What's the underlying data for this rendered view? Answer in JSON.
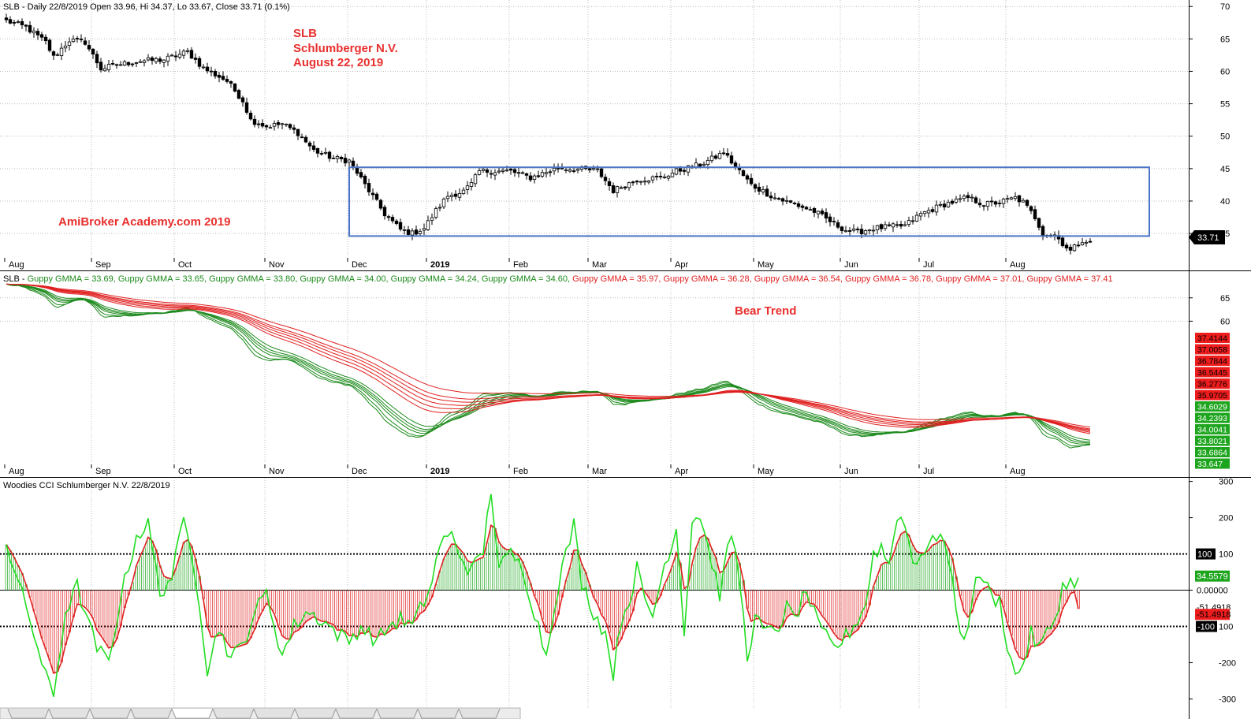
{
  "price": {
    "header": "SLB - Daily 22/8/2019 Open 33.96, Hi 34.37, Lo 33.67, Close 33.71 (0.1%)",
    "annotation_lines": [
      "SLB",
      "Schlumberger N.V.",
      "August 22, 2019"
    ],
    "watermark": "AmiBroker Academy.com 2019",
    "last_label": "33.71",
    "y_ticks": [
      70,
      65,
      60,
      55,
      50,
      45,
      40,
      35
    ],
    "ylim": [
      31,
      71
    ],
    "box": {
      "x0": 87,
      "x1": 290,
      "y0": 34.6,
      "y1": 45.2
    },
    "colors": {
      "candle": "#000000",
      "box": "#4a74c6",
      "annotation": "#e8302e"
    }
  },
  "gmma": {
    "header_prefix": "SLB - ",
    "entries": [
      {
        "text": "Guppy GMMA = 33.69",
        "color": "#1c8a1c"
      },
      {
        "text": "Guppy GMMA = 33.65",
        "color": "#1c8a1c"
      },
      {
        "text": "Guppy GMMA = 33.80",
        "color": "#1c8a1c"
      },
      {
        "text": "Guppy GMMA = 34.00",
        "color": "#1c8a1c"
      },
      {
        "text": "Guppy GMMA = 34.24",
        "color": "#1c8a1c"
      },
      {
        "text": "Guppy GMMA = 34.60",
        "color": "#1c8a1c"
      },
      {
        "text": "Guppy GMMA = 35.97",
        "color": "#e02020"
      },
      {
        "text": "Guppy GMMA = 36.28",
        "color": "#e02020"
      },
      {
        "text": "Guppy GMMA = 36.54",
        "color": "#e02020"
      },
      {
        "text": "Guppy GMMA = 36.78",
        "color": "#e02020"
      },
      {
        "text": "Guppy GMMA = 37.01",
        "color": "#e02020"
      },
      {
        "text": "Guppy GMMA = 37.41",
        "color": "#e02020"
      }
    ],
    "annotation": "Bear Trend",
    "y_ticks": [
      65,
      60
    ],
    "ylim": [
      29.5,
      68
    ],
    "right_labels": {
      "red": [
        "37.4144",
        "37.0058",
        "36.7844",
        "36.5445",
        "36.2776",
        "35.9705"
      ],
      "green": [
        "34.6029",
        "34.2393",
        "34.0041",
        "33.8021",
        "33.6864",
        "33.647"
      ]
    }
  },
  "cci": {
    "header": "Woodies CCI  Schlumberger N.V. 22/8/2019",
    "y_ticks": [
      300,
      200,
      100,
      0,
      -100,
      -200,
      -300
    ],
    "ylim": [
      -325,
      310
    ],
    "right_labels": {
      "plus100": "100",
      "green_value": "34.5579",
      "zero": "0.00000",
      "red_value": "-51.4918",
      "red_value2": "-51.4918",
      "minus100": "-100"
    }
  },
  "x_axis": {
    "months": [
      "Aug",
      "Sep",
      "Oct",
      "Nov",
      "Dec",
      "2019",
      "Feb",
      "Mar",
      "Apr",
      "May",
      "Jun",
      "Jul",
      "Aug"
    ],
    "month_starts": [
      0,
      22,
      43,
      66,
      87,
      107,
      128,
      148,
      169,
      190,
      212,
      232,
      254
    ]
  },
  "chart_data": [
    {
      "type": "candlestick",
      "title": "SLB - Daily 22/8/2019 Open 33.96, Hi 34.37, Lo 33.67, Close 33.71 (0.1%)",
      "x_range": [
        "Aug 2018",
        "Aug 22, 2019"
      ],
      "ylim": [
        31,
        71
      ],
      "close_anchors": [
        [
          0,
          67.8
        ],
        [
          5,
          66.8
        ],
        [
          10,
          64.5
        ],
        [
          12,
          62.2
        ],
        [
          16,
          64.8
        ],
        [
          20,
          64.5
        ],
        [
          24,
          60.4
        ],
        [
          28,
          61.0
        ],
        [
          34,
          61.6
        ],
        [
          40,
          61.8
        ],
        [
          46,
          63.0
        ],
        [
          50,
          60.5
        ],
        [
          56,
          58.5
        ],
        [
          60,
          55.5
        ],
        [
          62,
          52.5
        ],
        [
          66,
          51.5
        ],
        [
          70,
          51.9
        ],
        [
          74,
          50.5
        ],
        [
          78,
          47.8
        ],
        [
          83,
          46.6
        ],
        [
          87,
          46.2
        ],
        [
          91,
          42.5
        ],
        [
          96,
          38.0
        ],
        [
          100,
          35.6
        ],
        [
          103,
          35.0
        ],
        [
          106,
          35.8
        ],
        [
          109,
          38.5
        ],
        [
          112,
          40.8
        ],
        [
          116,
          41.5
        ],
        [
          118,
          42.6
        ],
        [
          120,
          44.6
        ],
        [
          128,
          44.6
        ],
        [
          133,
          43.6
        ],
        [
          140,
          45.1
        ],
        [
          150,
          44.7
        ],
        [
          154,
          41.6
        ],
        [
          160,
          43.3
        ],
        [
          166,
          43.6
        ],
        [
          170,
          44.6
        ],
        [
          176,
          45.6
        ],
        [
          180,
          46.8
        ],
        [
          182,
          47.5
        ],
        [
          185,
          45.3
        ],
        [
          189,
          42.5
        ],
        [
          195,
          40.5
        ],
        [
          200,
          39.5
        ],
        [
          205,
          38.4
        ],
        [
          210,
          36.5
        ],
        [
          213,
          35.5
        ],
        [
          216,
          35.2
        ],
        [
          220,
          35.8
        ],
        [
          228,
          36.2
        ],
        [
          232,
          38.0
        ],
        [
          238,
          39.5
        ],
        [
          244,
          40.5
        ],
        [
          248,
          39.5
        ],
        [
          252,
          39.8
        ],
        [
          256,
          40.5
        ],
        [
          258,
          39.8
        ],
        [
          261,
          37.5
        ],
        [
          263,
          35.0
        ],
        [
          266,
          34.8
        ],
        [
          268,
          33.5
        ],
        [
          270,
          32.3
        ],
        [
          273,
          34.0
        ],
        [
          275,
          33.71
        ]
      ],
      "last_close": 33.71,
      "shaded_range": {
        "x_from": "Dec 2018",
        "x_to": "Aug 2019",
        "y_from": 34.6,
        "y_to": 45.2
      }
    },
    {
      "type": "line",
      "title": "Guppy GMMA",
      "series": [
        {
          "name": "Guppy GMMA = 33.69",
          "last": 33.69
        },
        {
          "name": "Guppy GMMA = 33.65",
          "last": 33.65
        },
        {
          "name": "Guppy GMMA = 33.80",
          "last": 33.8
        },
        {
          "name": "Guppy GMMA = 34.00",
          "last": 34.0
        },
        {
          "name": "Guppy GMMA = 34.24",
          "last": 34.24
        },
        {
          "name": "Guppy GMMA = 34.60",
          "last": 34.6
        },
        {
          "name": "Guppy GMMA = 35.97",
          "last": 35.97
        },
        {
          "name": "Guppy GMMA = 36.28",
          "last": 36.28
        },
        {
          "name": "Guppy GMMA = 36.54",
          "last": 36.54
        },
        {
          "name": "Guppy GMMA = 36.78",
          "last": 36.78
        },
        {
          "name": "Guppy GMMA = 37.01",
          "last": 37.01
        },
        {
          "name": "Guppy GMMA = 37.41",
          "last": 37.41
        }
      ],
      "ylim": [
        29.5,
        68
      ]
    },
    {
      "type": "line",
      "title": "Woodies CCI  Schlumberger N.V. 22/8/2019",
      "ylim": [
        -325,
        310
      ],
      "reference_lines": [
        100,
        0,
        -100
      ],
      "cci_anchors": [
        [
          0,
          130
        ],
        [
          3,
          20
        ],
        [
          6,
          -80
        ],
        [
          10,
          -240
        ],
        [
          12,
          -290
        ],
        [
          15,
          -60
        ],
        [
          18,
          10
        ],
        [
          21,
          -100
        ],
        [
          23,
          -160
        ],
        [
          26,
          -200
        ],
        [
          29,
          -20
        ],
        [
          33,
          150
        ],
        [
          36,
          180
        ],
        [
          39,
          -10
        ],
        [
          42,
          40
        ],
        [
          45,
          190
        ],
        [
          47,
          110
        ],
        [
          49,
          -30
        ],
        [
          51,
          -220
        ],
        [
          54,
          -100
        ],
        [
          57,
          -190
        ],
        [
          60,
          -150
        ],
        [
          63,
          -60
        ],
        [
          66,
          -10
        ],
        [
          70,
          -180
        ],
        [
          73,
          -100
        ],
        [
          76,
          -60
        ],
        [
          80,
          -80
        ],
        [
          84,
          -120
        ],
        [
          87,
          -140
        ],
        [
          90,
          -100
        ],
        [
          94,
          -140
        ],
        [
          97,
          -100
        ],
        [
          100,
          -80
        ],
        [
          103,
          -100
        ],
        [
          106,
          -30
        ],
        [
          108,
          20
        ],
        [
          110,
          130
        ],
        [
          113,
          150
        ],
        [
          116,
          80
        ],
        [
          118,
          50
        ],
        [
          121,
          110
        ],
        [
          123,
          280
        ],
        [
          125,
          60
        ],
        [
          128,
          100
        ],
        [
          131,
          60
        ],
        [
          134,
          -60
        ],
        [
          137,
          -180
        ],
        [
          139,
          -40
        ],
        [
          141,
          60
        ],
        [
          144,
          180
        ],
        [
          146,
          20
        ],
        [
          149,
          -60
        ],
        [
          152,
          -120
        ],
        [
          154,
          -230
        ],
        [
          156,
          -80
        ],
        [
          158,
          -30
        ],
        [
          160,
          60
        ],
        [
          162,
          -30
        ],
        [
          164,
          -70
        ],
        [
          167,
          70
        ],
        [
          170,
          170
        ],
        [
          172,
          -110
        ],
        [
          174,
          190
        ],
        [
          176,
          210
        ],
        [
          178,
          120
        ],
        [
          181,
          -10
        ],
        [
          184,
          160
        ],
        [
          186,
          30
        ],
        [
          188,
          -180
        ],
        [
          190,
          -80
        ],
        [
          193,
          -120
        ],
        [
          196,
          -100
        ],
        [
          198,
          -50
        ],
        [
          200,
          -80
        ],
        [
          203,
          0
        ],
        [
          206,
          -100
        ],
        [
          208,
          -130
        ],
        [
          210,
          -160
        ],
        [
          212,
          -140
        ],
        [
          215,
          -100
        ],
        [
          218,
          -40
        ],
        [
          220,
          100
        ],
        [
          222,
          120
        ],
        [
          224,
          70
        ],
        [
          226,
          210
        ],
        [
          228,
          180
        ],
        [
          230,
          80
        ],
        [
          232,
          100
        ],
        [
          235,
          130
        ],
        [
          237,
          170
        ],
        [
          239,
          80
        ],
        [
          241,
          -50
        ],
        [
          243,
          -150
        ],
        [
          245,
          -20
        ],
        [
          247,
          50
        ],
        [
          250,
          -20
        ],
        [
          252,
          -30
        ],
        [
          254,
          -150
        ],
        [
          256,
          -240
        ],
        [
          258,
          -200
        ],
        [
          260,
          -120
        ],
        [
          262,
          -160
        ],
        [
          264,
          -120
        ],
        [
          266,
          -80
        ],
        [
          268,
          10
        ],
        [
          270,
          20
        ],
        [
          272,
          34.56
        ]
      ],
      "last_cci": 34.5579,
      "last_trigger": -51.4918
    }
  ]
}
